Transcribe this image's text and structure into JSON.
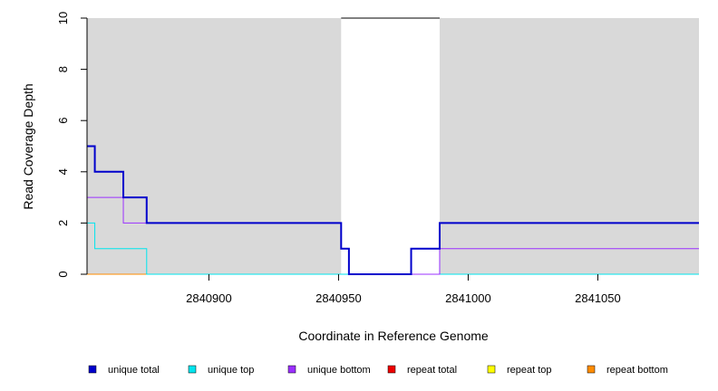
{
  "chart_data": {
    "type": "line",
    "title": "",
    "xlabel": "Coordinate in Reference Genome",
    "ylabel": "Read Coverage Depth",
    "xlim": [
      2840853,
      2841089
    ],
    "ylim": [
      0,
      10
    ],
    "x_ticks": [
      2840900,
      2840950,
      2841000,
      2841050
    ],
    "y_ticks": [
      0,
      2,
      4,
      6,
      8,
      10
    ],
    "shaded_regions": [
      {
        "from": 2840853,
        "to": 2840951,
        "color": "#d9d9d9"
      },
      {
        "from": 2840989,
        "to": 2841089,
        "color": "#d9d9d9"
      }
    ],
    "top_line": {
      "from": 2840951,
      "to": 2840989,
      "y": 10,
      "color": "#000000"
    },
    "series": [
      {
        "name": "unique total",
        "color": "#0000cc",
        "width": 2,
        "steps": [
          [
            2840853,
            5
          ],
          [
            2840856,
            4
          ],
          [
            2840867,
            3
          ],
          [
            2840876,
            2
          ],
          [
            2840951,
            1
          ],
          [
            2840954,
            0
          ],
          [
            2840978,
            1
          ],
          [
            2840989,
            2
          ],
          [
            2841089,
            2
          ]
        ]
      },
      {
        "name": "unique top",
        "color": "#00e5ee",
        "width": 1,
        "steps": [
          [
            2840853,
            2
          ],
          [
            2840856,
            1
          ],
          [
            2840876,
            0
          ],
          [
            2840978,
            1
          ],
          [
            2840989,
            0
          ],
          [
            2841089,
            0
          ]
        ]
      },
      {
        "name": "unique bottom",
        "color": "#9b30ff",
        "width": 1,
        "steps": [
          [
            2840853,
            3
          ],
          [
            2840867,
            2
          ],
          [
            2840951,
            1
          ],
          [
            2840954,
            0
          ],
          [
            2840989,
            1
          ],
          [
            2841089,
            1
          ]
        ]
      },
      {
        "name": "repeat total",
        "color": "#ee0000",
        "width": 1,
        "steps": []
      },
      {
        "name": "repeat top",
        "color": "#ffff00",
        "width": 1,
        "steps": []
      },
      {
        "name": "repeat bottom",
        "color": "#ff8c00",
        "width": 1,
        "steps": [
          [
            2840853,
            0
          ],
          [
            2841089,
            0
          ]
        ]
      }
    ],
    "legend": {
      "placement": "bottom",
      "items": [
        "unique total",
        "unique top",
        "unique bottom",
        "repeat total",
        "repeat top",
        "repeat bottom"
      ]
    }
  }
}
